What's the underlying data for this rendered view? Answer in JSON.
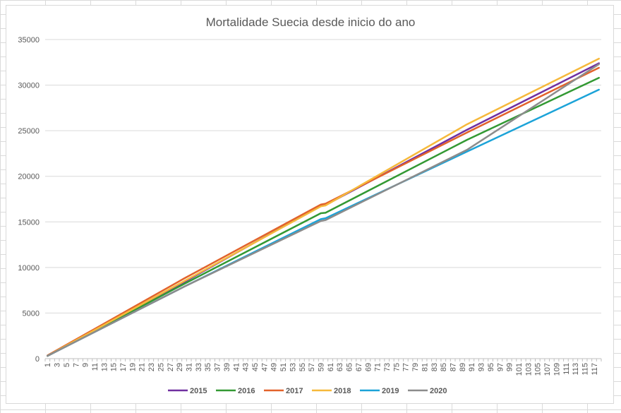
{
  "chart_data": {
    "type": "line",
    "title": "Mortalidade Suecia desde inicio do ano",
    "xlabel": "",
    "ylabel": "",
    "x_range": [
      1,
      118
    ],
    "x_tick_labels": [
      "1",
      "3",
      "5",
      "7",
      "9",
      "11",
      "13",
      "15",
      "17",
      "19",
      "21",
      "23",
      "25",
      "27",
      "29",
      "31",
      "33",
      "35",
      "37",
      "39",
      "41",
      "43",
      "45",
      "47",
      "49",
      "51",
      "53",
      "55",
      "57",
      "59",
      "61",
      "63",
      "65",
      "67",
      "69",
      "71",
      "73",
      "75",
      "77",
      "79",
      "81",
      "83",
      "85",
      "87",
      "89",
      "91",
      "93",
      "95",
      "97",
      "99",
      "101",
      "103",
      "105",
      "107",
      "109",
      "111",
      "113",
      "115",
      "117"
    ],
    "ylim": [
      0,
      35000
    ],
    "y_ticks": [
      0,
      5000,
      10000,
      15000,
      20000,
      25000,
      30000,
      35000
    ],
    "grid": "horizontal",
    "legend_position": "bottom",
    "series": [
      {
        "name": "2015",
        "color": "#7030a0",
        "points": [
          [
            1,
            300
          ],
          [
            30,
            8400
          ],
          [
            59,
            16800
          ],
          [
            60,
            16850
          ],
          [
            90,
            25100
          ],
          [
            118,
            32400
          ]
        ]
      },
      {
        "name": "2016",
        "color": "#339933",
        "points": [
          [
            1,
            300
          ],
          [
            30,
            8200
          ],
          [
            59,
            15950
          ],
          [
            60,
            16000
          ],
          [
            90,
            24000
          ],
          [
            118,
            30800
          ]
        ]
      },
      {
        "name": "2017",
        "color": "#e2632b",
        "points": [
          [
            1,
            350
          ],
          [
            30,
            8800
          ],
          [
            59,
            16900
          ],
          [
            60,
            17000
          ],
          [
            90,
            24800
          ],
          [
            118,
            31900
          ]
        ]
      },
      {
        "name": "2018",
        "color": "#f6b93b",
        "points": [
          [
            1,
            300
          ],
          [
            30,
            8500
          ],
          [
            59,
            16700
          ],
          [
            60,
            16800
          ],
          [
            90,
            25700
          ],
          [
            118,
            32900
          ]
        ]
      },
      {
        "name": "2019",
        "color": "#1ca3d8",
        "points": [
          [
            1,
            300
          ],
          [
            30,
            7900
          ],
          [
            59,
            15300
          ],
          [
            60,
            15400
          ],
          [
            90,
            22700
          ],
          [
            118,
            29500
          ]
        ]
      },
      {
        "name": "2020",
        "color": "#8c8c8c",
        "points": [
          [
            1,
            300
          ],
          [
            30,
            7900
          ],
          [
            59,
            15100
          ],
          [
            60,
            15200
          ],
          [
            90,
            22900
          ],
          [
            118,
            32300
          ]
        ]
      }
    ]
  }
}
